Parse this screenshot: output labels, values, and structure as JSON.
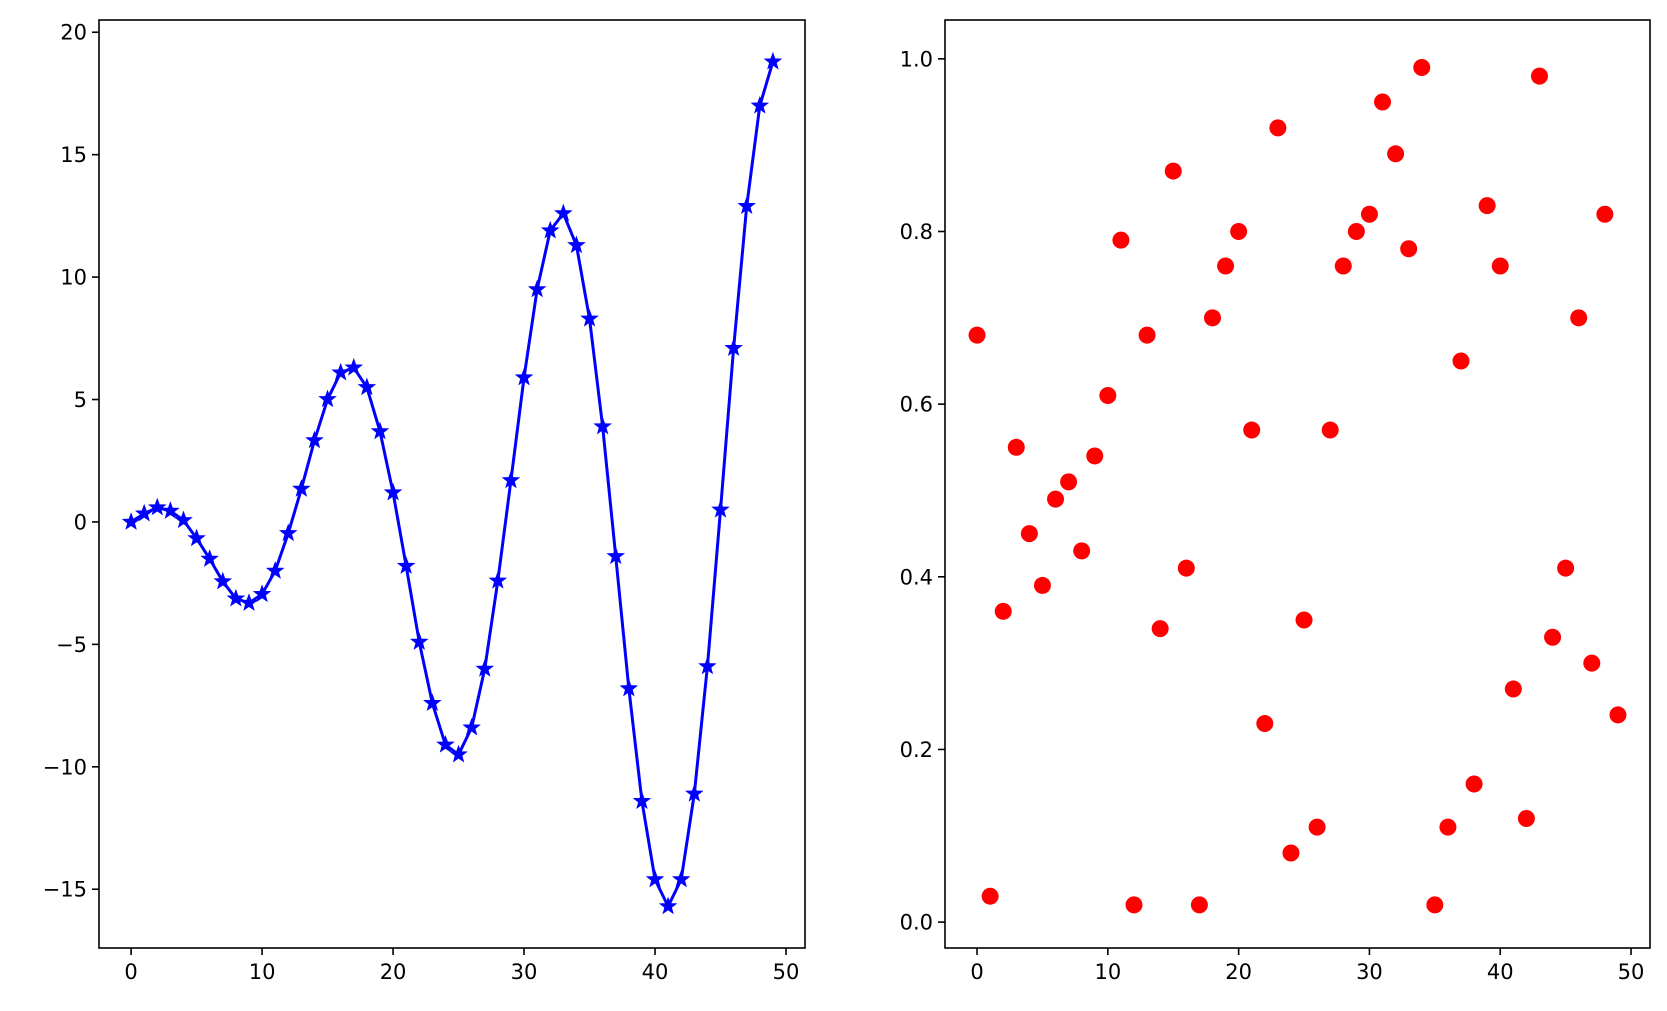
{
  "chart_data": [
    {
      "type": "line",
      "title": "",
      "xlabel": "",
      "ylabel": "",
      "xlim": [
        -2.45,
        51.45
      ],
      "ylim": [
        -17.4,
        20.5
      ],
      "grid": false,
      "legend": "none",
      "xticks": [
        0,
        10,
        20,
        30,
        40,
        50
      ],
      "xtick_labels": [
        "0",
        "10",
        "20",
        "30",
        "40",
        "50"
      ],
      "yticks": [
        -15,
        -10,
        -5,
        0,
        5,
        10,
        15,
        20
      ],
      "ytick_labels": [
        "−15",
        "−10",
        "−5",
        "0",
        "5",
        "10",
        "15",
        "20"
      ],
      "series": [
        {
          "color": "#0000ff",
          "marker": "star",
          "x": [
            0,
            1,
            2,
            3,
            4,
            5,
            6,
            7,
            8,
            9,
            10,
            11,
            12,
            13,
            14,
            15,
            16,
            17,
            18,
            19,
            20,
            21,
            22,
            23,
            24,
            25,
            26,
            27,
            28,
            29,
            30,
            31,
            32,
            33,
            34,
            35,
            36,
            37,
            38,
            39,
            40,
            41,
            42,
            43,
            44,
            45,
            46,
            47,
            48,
            49
          ],
          "values": [
            0.0,
            0.34,
            0.59,
            0.45,
            0.07,
            -0.67,
            -1.51,
            -2.43,
            -3.13,
            -3.31,
            -2.95,
            -2.0,
            -0.46,
            1.35,
            3.33,
            5.01,
            6.1,
            6.3,
            5.5,
            3.7,
            1.2,
            -1.8,
            -4.9,
            -7.4,
            -9.1,
            -9.5,
            -8.4,
            -6.0,
            -2.4,
            1.7,
            5.9,
            9.5,
            11.9,
            12.6,
            11.3,
            8.3,
            3.9,
            -1.4,
            -6.8,
            -11.4,
            -14.6,
            -15.7,
            -14.6,
            -11.1,
            -5.9,
            0.5,
            7.1,
            12.9,
            17.0,
            18.8
          ]
        }
      ]
    },
    {
      "type": "scatter",
      "title": "",
      "xlabel": "",
      "ylabel": "",
      "xlim": [
        -2.45,
        51.45
      ],
      "ylim": [
        -0.03,
        1.045
      ],
      "grid": false,
      "legend": "none",
      "xticks": [
        0,
        10,
        20,
        30,
        40,
        50
      ],
      "xtick_labels": [
        "0",
        "10",
        "20",
        "30",
        "40",
        "50"
      ],
      "yticks": [
        0.0,
        0.2,
        0.4,
        0.6,
        0.8,
        1.0
      ],
      "ytick_labels": [
        "0.0",
        "0.2",
        "0.4",
        "0.6",
        "0.8",
        "1.0"
      ],
      "series": [
        {
          "color": "#ff0000",
          "marker": "circle",
          "x": [
            0,
            1,
            2,
            3,
            4,
            5,
            6,
            7,
            8,
            9,
            10,
            11,
            12,
            13,
            14,
            15,
            16,
            17,
            18,
            19,
            20,
            21,
            22,
            23,
            24,
            25,
            26,
            27,
            28,
            29,
            30,
            31,
            32,
            33,
            34,
            35,
            36,
            37,
            38,
            39,
            40,
            41,
            42,
            43,
            44,
            45,
            46,
            47,
            48,
            49
          ],
          "values": [
            0.68,
            0.03,
            0.36,
            0.55,
            0.45,
            0.39,
            0.49,
            0.51,
            0.43,
            0.54,
            0.61,
            0.79,
            0.02,
            0.68,
            0.34,
            0.87,
            0.41,
            0.02,
            0.7,
            0.76,
            0.8,
            0.57,
            0.23,
            0.92,
            0.08,
            0.35,
            0.11,
            0.57,
            0.76,
            0.8,
            0.82,
            0.95,
            0.89,
            0.78,
            0.99,
            0.02,
            0.11,
            0.65,
            0.16,
            0.83,
            0.76,
            0.27,
            0.12,
            0.98,
            0.33,
            0.41,
            0.7,
            0.3,
            0.82,
            0.24
          ]
        }
      ]
    }
  ]
}
